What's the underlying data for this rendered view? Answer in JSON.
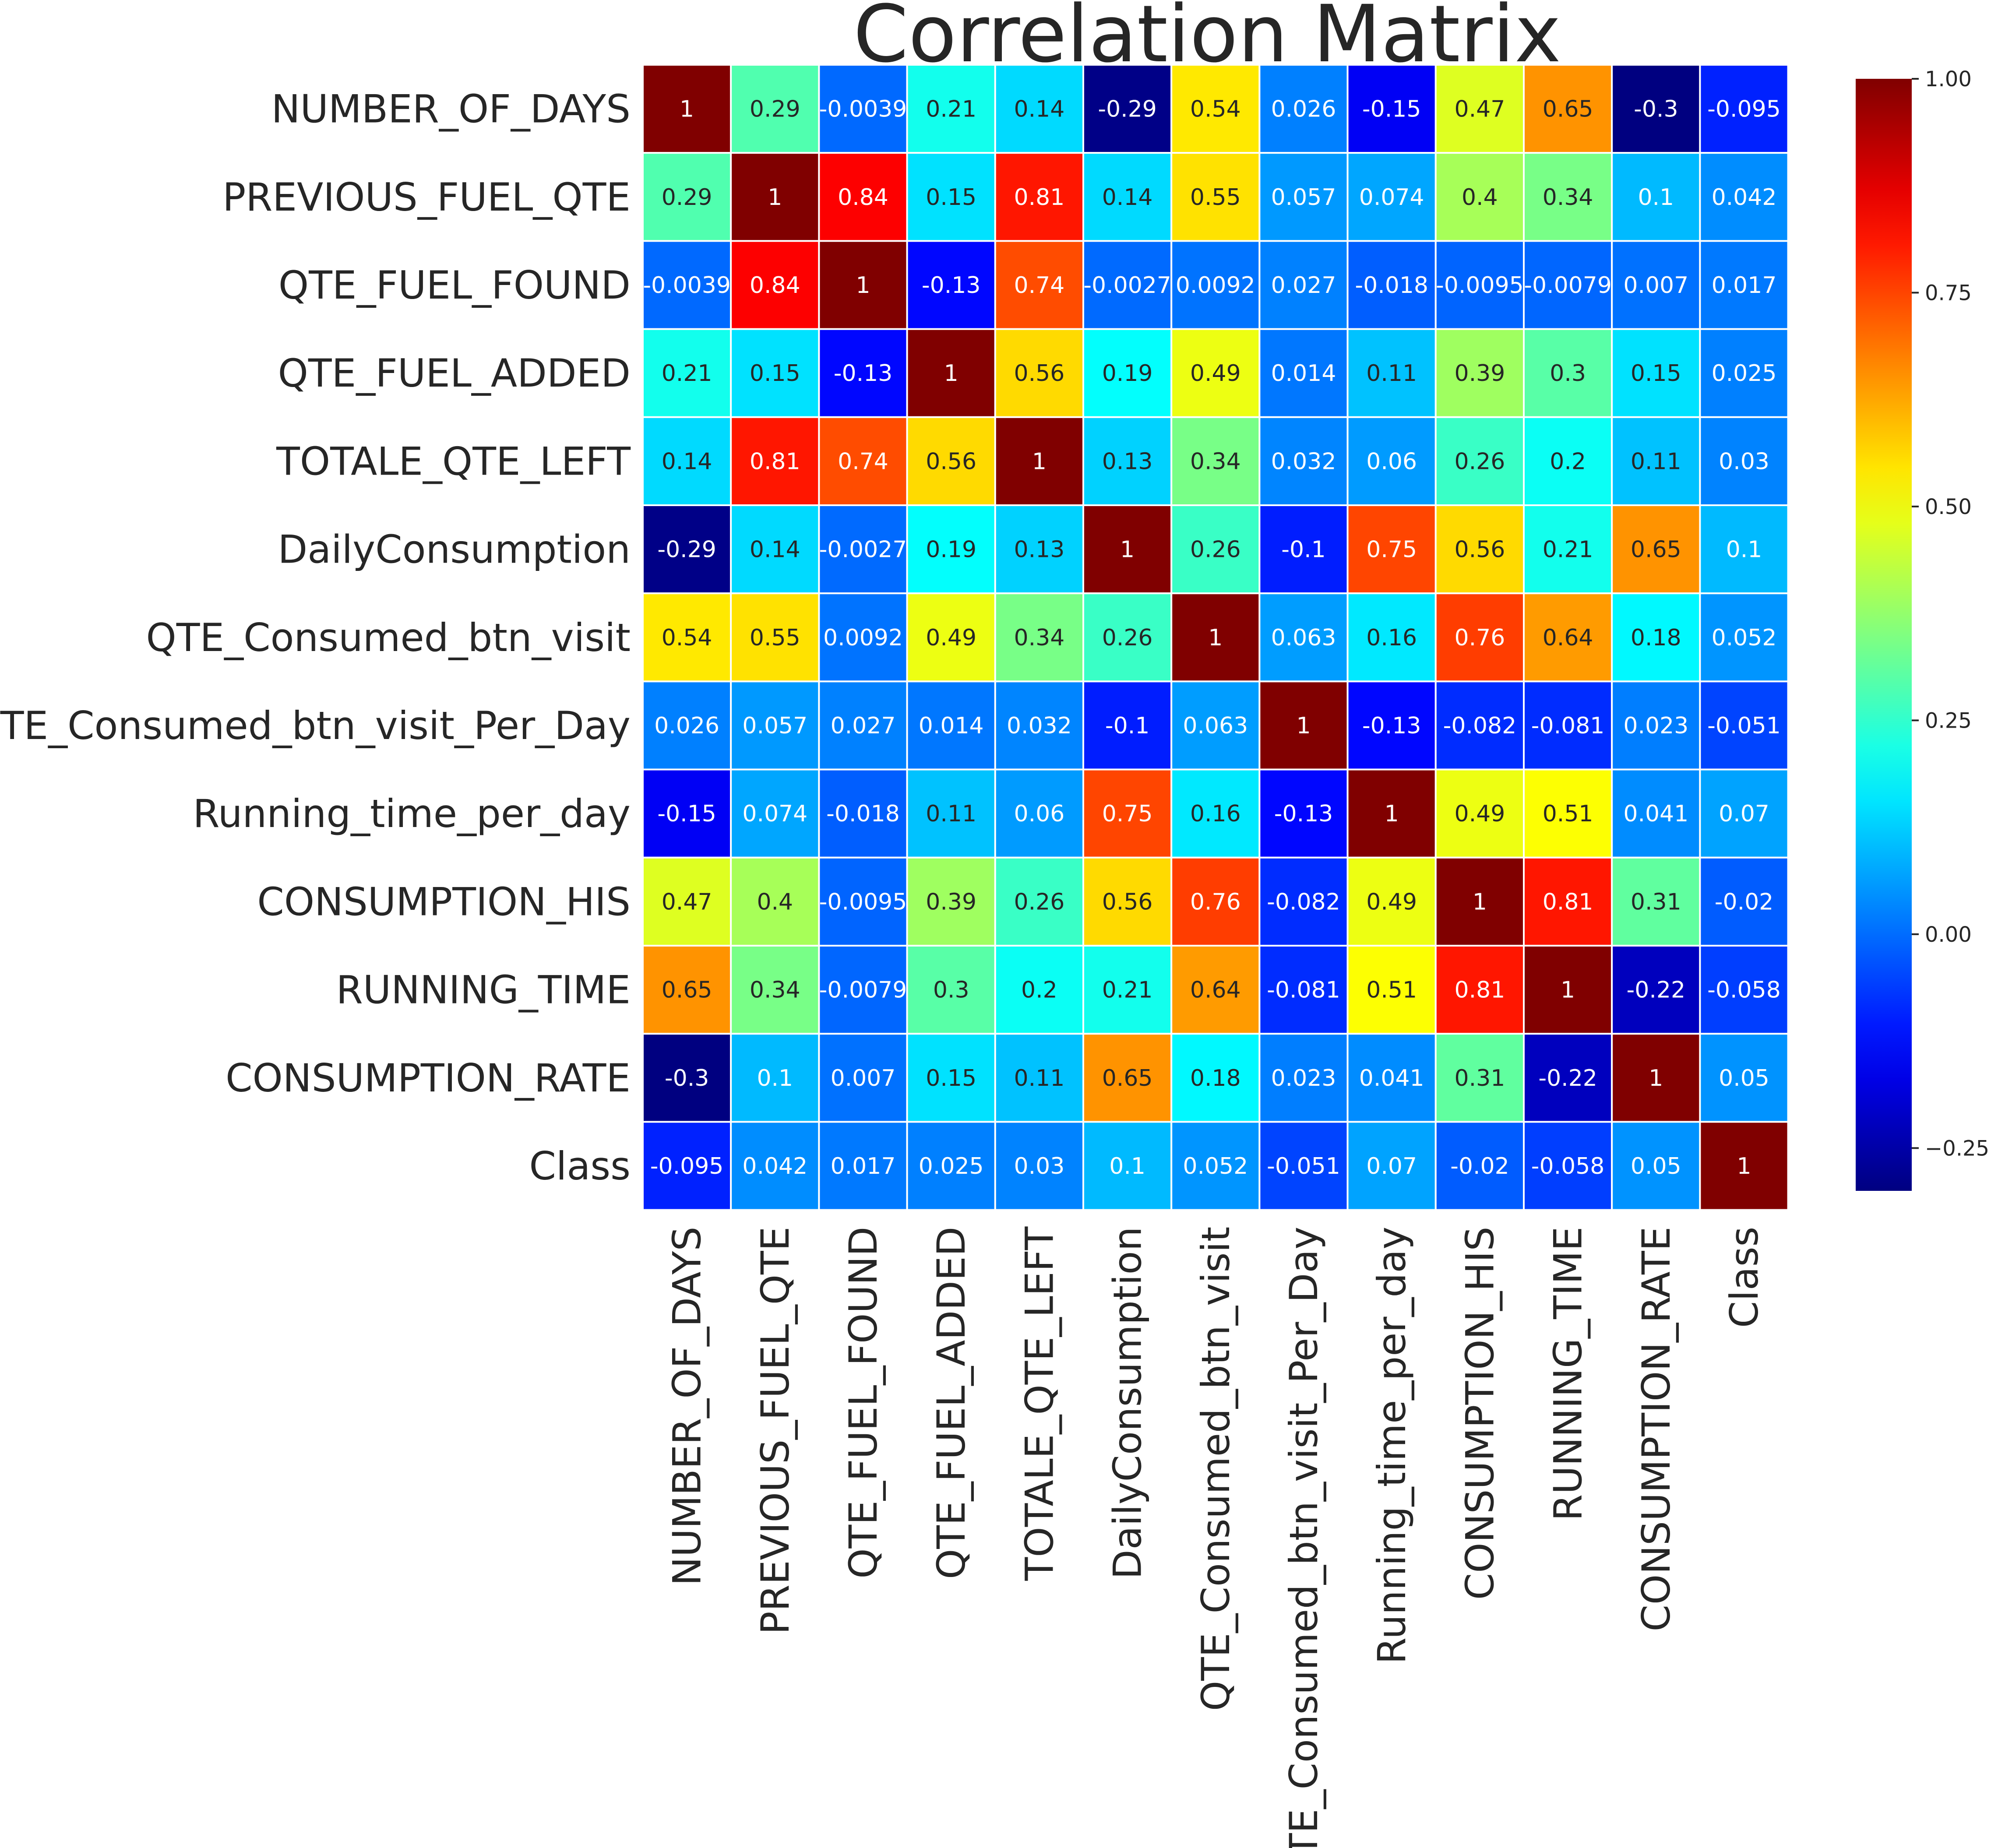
{
  "chart_data": {
    "type": "heatmap",
    "title": "Correlation Matrix",
    "labels": [
      "NUMBER_OF_DAYS",
      "PREVIOUS_FUEL_QTE",
      "QTE_FUEL_FOUND",
      "QTE_FUEL_ADDED",
      "TOTALE_QTE_LEFT",
      "DailyConsumption",
      "QTE_Consumed_btn_visit",
      "QTE_Consumed_btn_visit_Per_Day",
      "Running_time_per_day",
      "CONSUMPTION_HIS",
      "RUNNING_TIME",
      "CONSUMPTION_RATE",
      "Class"
    ],
    "matrix": [
      [
        "1",
        "0.29",
        "-0.0039",
        "0.21",
        "0.14",
        "-0.29",
        "0.54",
        "0.026",
        "-0.15",
        "0.47",
        "0.65",
        "-0.3",
        "-0.095"
      ],
      [
        "0.29",
        "1",
        "0.84",
        "0.15",
        "0.81",
        "0.14",
        "0.55",
        "0.057",
        "0.074",
        "0.4",
        "0.34",
        "0.1",
        "0.042"
      ],
      [
        "-0.0039",
        "0.84",
        "1",
        "-0.13",
        "0.74",
        "-0.0027",
        "0.0092",
        "0.027",
        "-0.018",
        "-0.0095",
        "-0.0079",
        "0.007",
        "0.017"
      ],
      [
        "0.21",
        "0.15",
        "-0.13",
        "1",
        "0.56",
        "0.19",
        "0.49",
        "0.014",
        "0.11",
        "0.39",
        "0.3",
        "0.15",
        "0.025"
      ],
      [
        "0.14",
        "0.81",
        "0.74",
        "0.56",
        "1",
        "0.13",
        "0.34",
        "0.032",
        "0.06",
        "0.26",
        "0.2",
        "0.11",
        "0.03"
      ],
      [
        "-0.29",
        "0.14",
        "-0.0027",
        "0.19",
        "0.13",
        "1",
        "0.26",
        "-0.1",
        "0.75",
        "0.56",
        "0.21",
        "0.65",
        "0.1"
      ],
      [
        "0.54",
        "0.55",
        "0.0092",
        "0.49",
        "0.34",
        "0.26",
        "1",
        "0.063",
        "0.16",
        "0.76",
        "0.64",
        "0.18",
        "0.052"
      ],
      [
        "0.026",
        "0.057",
        "0.027",
        "0.014",
        "0.032",
        "-0.1",
        "0.063",
        "1",
        "-0.13",
        "-0.082",
        "-0.081",
        "0.023",
        "-0.051"
      ],
      [
        "-0.15",
        "0.074",
        "-0.018",
        "0.11",
        "0.06",
        "0.75",
        "0.16",
        "-0.13",
        "1",
        "0.49",
        "0.51",
        "0.041",
        "0.07"
      ],
      [
        "0.47",
        "0.4",
        "-0.0095",
        "0.39",
        "0.26",
        "0.56",
        "0.76",
        "-0.082",
        "0.49",
        "1",
        "0.81",
        "0.31",
        "-0.02"
      ],
      [
        "0.65",
        "0.34",
        "-0.0079",
        "0.3",
        "0.2",
        "0.21",
        "0.64",
        "-0.081",
        "0.51",
        "0.81",
        "1",
        "-0.22",
        "-0.058"
      ],
      [
        "-0.3",
        "0.1",
        "0.007",
        "0.15",
        "0.11",
        "0.65",
        "0.18",
        "0.023",
        "0.041",
        "0.31",
        "-0.22",
        "1",
        "0.05"
      ],
      [
        "-0.095",
        "0.042",
        "0.017",
        "0.025",
        "0.03",
        "0.1",
        "0.052",
        "-0.051",
        "0.07",
        "-0.02",
        "-0.058",
        "0.05",
        "1"
      ]
    ],
    "colorscale": "jet",
    "vmin": -0.3,
    "vmax": 1.0,
    "colorbar": {
      "position": "right",
      "ticks": [
        "1.00",
        "0.75",
        "0.50",
        "0.25",
        "0.00",
        "−0.25"
      ],
      "tick_values": [
        1.0,
        0.75,
        0.5,
        0.25,
        0.0,
        -0.25
      ]
    },
    "grid_lines": "white"
  }
}
